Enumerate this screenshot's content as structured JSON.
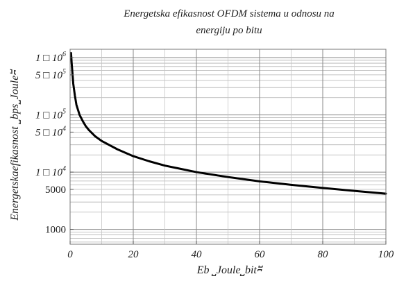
{
  "chart_data": {
    "type": "line",
    "title_line1": "Energetska efikasnost OFDM sistema u odnosu na",
    "title_line2": "energiju  po bitu",
    "xlabel": "Eb ⎵Joule⎵bit⎶",
    "ylabel": "Energetskaefikasnost ⎵bps⎵Joule⎶",
    "x_scale": "linear",
    "y_scale": "log",
    "xlim": [
      0,
      100
    ],
    "ylim": [
      550,
      1400000
    ],
    "grid": true,
    "x_ticks": [
      {
        "value": 0,
        "label": "0"
      },
      {
        "value": 20,
        "label": "20"
      },
      {
        "value": 40,
        "label": "40"
      },
      {
        "value": 60,
        "label": "60"
      },
      {
        "value": 80,
        "label": "80"
      },
      {
        "value": 100,
        "label": "100"
      }
    ],
    "y_ticks": [
      {
        "value": 1000000,
        "mantissa": "1 □ 10",
        "exponent": "6"
      },
      {
        "value": 500000,
        "mantissa": "5 □ 10",
        "exponent": "5"
      },
      {
        "value": 100000,
        "mantissa": "1 □ 10",
        "exponent": "5"
      },
      {
        "value": 50000,
        "mantissa": "5 □ 10",
        "exponent": "4"
      },
      {
        "value": 10000,
        "mantissa": "1 □ 10",
        "exponent": "4"
      },
      {
        "value": 5000,
        "mantissa": "5000",
        "exponent": ""
      },
      {
        "value": 1000,
        "mantissa": "1000",
        "exponent": ""
      }
    ],
    "series": [
      {
        "color": "#000000",
        "x": [
          0.3,
          0.5,
          1,
          1.5,
          2,
          3,
          4,
          5,
          6,
          8,
          10,
          15,
          20,
          25,
          30,
          40,
          50,
          60,
          70,
          80,
          90,
          100
        ],
        "y": [
          1200000,
          800000,
          350000,
          220000,
          150000,
          100000,
          78000,
          63000,
          54000,
          42000,
          35000,
          25000,
          19000,
          15500,
          13000,
          10000,
          8200,
          6900,
          6000,
          5300,
          4700,
          4200
        ]
      }
    ]
  }
}
